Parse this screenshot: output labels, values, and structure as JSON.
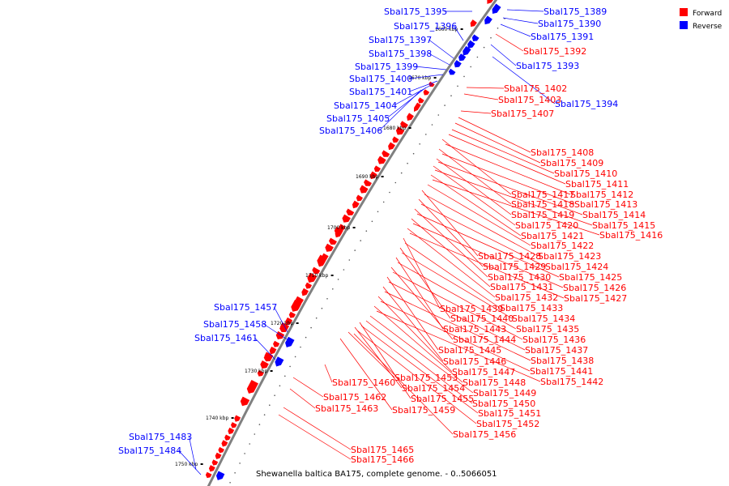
{
  "colors": {
    "forward": "#ff0000",
    "reverse": "#0000ff",
    "backbone": "#808080",
    "tick": "#000000"
  },
  "legend": [
    {
      "label": "Forward",
      "strand": "forward"
    },
    {
      "label": "Reverse",
      "strand": "reverse"
    }
  ],
  "caption": "Shewanella baltica BA175, complete genome. - 0..5066051",
  "ticks": [
    "1660 kbp",
    "1670 kbp",
    "1680 kbp",
    "1690 kbp",
    "1700 kbp",
    "1710 kbp",
    "1720 kbp",
    "1730 kbp",
    "1740 kbp",
    "1750 kbp"
  ],
  "labels": [
    {
      "text": "Sbal175_1389",
      "strand": "reverse"
    },
    {
      "text": "Sbal175_1390",
      "strand": "reverse"
    },
    {
      "text": "Sbal175_1391",
      "strand": "reverse"
    },
    {
      "text": "Sbal175_1392",
      "strand": "forward"
    },
    {
      "text": "Sbal175_1393",
      "strand": "reverse"
    },
    {
      "text": "Sbal175_1394",
      "strand": "reverse"
    },
    {
      "text": "Sbal175_1395",
      "strand": "reverse"
    },
    {
      "text": "Sbal175_1396",
      "strand": "reverse"
    },
    {
      "text": "Sbal175_1397",
      "strand": "reverse"
    },
    {
      "text": "Sbal175_1398",
      "strand": "reverse"
    },
    {
      "text": "Sbal175_1399",
      "strand": "reverse"
    },
    {
      "text": "Sbal175_1400",
      "strand": "reverse"
    },
    {
      "text": "Sbal175_1401",
      "strand": "reverse"
    },
    {
      "text": "Sbal175_1404",
      "strand": "reverse"
    },
    {
      "text": "Sbal175_1405",
      "strand": "reverse"
    },
    {
      "text": "Sbal175_1406",
      "strand": "reverse"
    },
    {
      "text": "Sbal175_1402",
      "strand": "forward"
    },
    {
      "text": "Sbal175_1403",
      "strand": "forward"
    },
    {
      "text": "Sbal175_1407",
      "strand": "forward"
    },
    {
      "text": "Sbal175_1408",
      "strand": "forward"
    },
    {
      "text": "Sbal175_1409",
      "strand": "forward"
    },
    {
      "text": "Sbal175_1410",
      "strand": "forward"
    },
    {
      "text": "Sbal175_1411",
      "strand": "forward"
    },
    {
      "text": "Sbal175_1417",
      "strand": "forward"
    },
    {
      "text": "Sbal175_1412",
      "strand": "forward"
    },
    {
      "text": "Sbal175_1418",
      "strand": "forward"
    },
    {
      "text": "Sbal175_1413",
      "strand": "forward"
    },
    {
      "text": "Sbal175_1419",
      "strand": "forward"
    },
    {
      "text": "Sbal175_1414",
      "strand": "forward"
    },
    {
      "text": "Sbal175_1420",
      "strand": "forward"
    },
    {
      "text": "Sbal175_1415",
      "strand": "forward"
    },
    {
      "text": "Sbal175_1421",
      "strand": "forward"
    },
    {
      "text": "Sbal175_1416",
      "strand": "forward"
    },
    {
      "text": "Sbal175_1422",
      "strand": "forward"
    },
    {
      "text": "Sbal175_1428",
      "strand": "forward"
    },
    {
      "text": "Sbal175_1423",
      "strand": "forward"
    },
    {
      "text": "Sbal175_1429",
      "strand": "forward"
    },
    {
      "text": "Sbal175_1424",
      "strand": "forward"
    },
    {
      "text": "Sbal175_1430",
      "strand": "forward"
    },
    {
      "text": "Sbal175_1425",
      "strand": "forward"
    },
    {
      "text": "Sbal175_1431",
      "strand": "forward"
    },
    {
      "text": "Sbal175_1426",
      "strand": "forward"
    },
    {
      "text": "Sbal175_1432",
      "strand": "forward"
    },
    {
      "text": "Sbal175_1427",
      "strand": "forward"
    },
    {
      "text": "Sbal175_1439",
      "strand": "forward"
    },
    {
      "text": "Sbal175_1433",
      "strand": "forward"
    },
    {
      "text": "Sbal175_1440",
      "strand": "forward"
    },
    {
      "text": "Sbal175_1434",
      "strand": "forward"
    },
    {
      "text": "Sbal175_1443",
      "strand": "forward"
    },
    {
      "text": "Sbal175_1435",
      "strand": "forward"
    },
    {
      "text": "Sbal175_1444",
      "strand": "forward"
    },
    {
      "text": "Sbal175_1436",
      "strand": "forward"
    },
    {
      "text": "Sbal175_1445",
      "strand": "forward"
    },
    {
      "text": "Sbal175_1437",
      "strand": "forward"
    },
    {
      "text": "Sbal175_1446",
      "strand": "forward"
    },
    {
      "text": "Sbal175_1438",
      "strand": "forward"
    },
    {
      "text": "Sbal175_1447",
      "strand": "forward"
    },
    {
      "text": "Sbal175_1441",
      "strand": "forward"
    },
    {
      "text": "Sbal175_1460",
      "strand": "forward"
    },
    {
      "text": "Sbal175_1453",
      "strand": "forward"
    },
    {
      "text": "Sbal175_1448",
      "strand": "forward"
    },
    {
      "text": "Sbal175_1442",
      "strand": "forward"
    },
    {
      "text": "Sbal175_1454",
      "strand": "forward"
    },
    {
      "text": "Sbal175_1449",
      "strand": "forward"
    },
    {
      "text": "Sbal175_1462",
      "strand": "forward"
    },
    {
      "text": "Sbal175_1455",
      "strand": "forward"
    },
    {
      "text": "Sbal175_1450",
      "strand": "forward"
    },
    {
      "text": "Sbal175_1463",
      "strand": "forward"
    },
    {
      "text": "Sbal175_1459",
      "strand": "forward"
    },
    {
      "text": "Sbal175_1451",
      "strand": "forward"
    },
    {
      "text": "Sbal175_1452",
      "strand": "forward"
    },
    {
      "text": "Sbal175_1456",
      "strand": "forward"
    },
    {
      "text": "Sbal175_1465",
      "strand": "forward"
    },
    {
      "text": "Sbal175_1466",
      "strand": "forward"
    },
    {
      "text": "Sbal175_1457",
      "strand": "reverse"
    },
    {
      "text": "Sbal175_1458",
      "strand": "reverse"
    },
    {
      "text": "Sbal175_1461",
      "strand": "reverse"
    },
    {
      "text": "Sbal175_1483",
      "strand": "reverse"
    },
    {
      "text": "Sbal175_1484",
      "strand": "reverse"
    }
  ]
}
